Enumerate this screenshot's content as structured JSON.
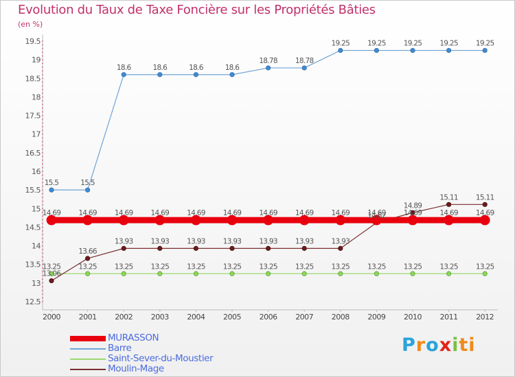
{
  "title": "Evolution du Taux de Taxe Foncière sur les Propriétés Bâties",
  "subtitle": "(en %)",
  "logo_text": "Proxiti",
  "chart_data": {
    "type": "line",
    "title": "Evolution du Taux de Taxe Foncière sur les Propriétés Bâties",
    "ylabel": "(en %)",
    "xlabel": "",
    "x": [
      "2000",
      "2001",
      "2002",
      "2003",
      "2004",
      "2005",
      "2006",
      "2007",
      "2008",
      "2009",
      "2010",
      "2011",
      "2012"
    ],
    "ylim": [
      12.5,
      19.5
    ],
    "yticks": [
      "12.5",
      "13",
      "13.5",
      "14",
      "14.5",
      "15",
      "15.5",
      "16",
      "16.5",
      "17",
      "17.5",
      "18",
      "18.5",
      "19",
      "19.5"
    ],
    "grid": false,
    "legend_position": "bottom-left",
    "series": [
      {
        "name": "MURASSON",
        "color": "#e8000e",
        "values": [
          14.69,
          14.69,
          14.69,
          14.69,
          14.69,
          14.69,
          14.69,
          14.69,
          14.69,
          14.69,
          14.69,
          14.69,
          14.69
        ],
        "labels": [
          "14.69",
          "14.69",
          "14.69",
          "14.69",
          "14.69",
          "14.69",
          "14.69",
          "14.69",
          "14.69",
          "14.69",
          "14.69",
          "14.69",
          "14.69"
        ]
      },
      {
        "name": "Barre",
        "color": "#6fa3d6",
        "values": [
          15.5,
          15.5,
          18.6,
          18.6,
          18.6,
          18.6,
          18.78,
          18.78,
          19.25,
          19.25,
          19.25,
          19.25,
          19.25
        ],
        "labels": [
          "15.5",
          "15.5",
          "18.6",
          "18.6",
          "18.6",
          "18.6",
          "18.78",
          "18.78",
          "19.25",
          "19.25",
          "19.25",
          "19.25",
          "19.25"
        ]
      },
      {
        "name": "Saint-Sever-du-Moustier",
        "color": "#9bd86f",
        "values": [
          13.25,
          13.25,
          13.25,
          13.25,
          13.25,
          13.25,
          13.25,
          13.25,
          13.25,
          13.25,
          13.25,
          13.25,
          13.25
        ],
        "labels": [
          "13.25",
          "13.25",
          "13.25",
          "13.25",
          "13.25",
          "13.25",
          "13.25",
          "13.25",
          "13.25",
          "13.25",
          "13.25",
          "13.25",
          "13.25"
        ]
      },
      {
        "name": "Moulin-Mage",
        "color": "#7b2e2e",
        "values": [
          13.06,
          13.66,
          13.93,
          13.93,
          13.93,
          13.93,
          13.93,
          13.93,
          13.93,
          14.62,
          14.89,
          15.11,
          15.11
        ],
        "labels": [
          "13.06",
          "13.66",
          "13.93",
          "13.93",
          "13.93",
          "13.93",
          "13.93",
          "13.93",
          "13.93",
          "14.62",
          "14.89",
          "15.11",
          "15.11"
        ]
      }
    ]
  }
}
